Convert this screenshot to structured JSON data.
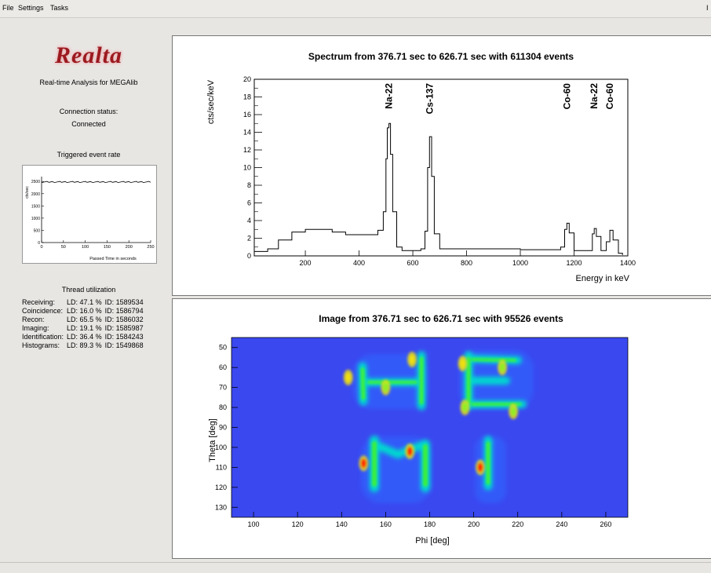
{
  "menu": {
    "file": "File",
    "settings": "Settings",
    "tasks": "Tasks",
    "right_stub": "I"
  },
  "app": {
    "logo": "Realta",
    "subtitle": "Real-time Analysis for MEGAlib"
  },
  "connection": {
    "label": "Connection status:",
    "value": "Connected"
  },
  "rate_plot": {
    "title": "Triggered event rate",
    "ylabel": "cts/sec",
    "xlabel": "Passed Time in seconds",
    "yticks": [
      "0",
      "500",
      "1000",
      "1500",
      "2000",
      "2500"
    ],
    "xticks": [
      "0",
      "50",
      "100",
      "150",
      "200",
      "250"
    ]
  },
  "threads": {
    "title": "Thread utilization",
    "rows": [
      {
        "name": "Receiving:",
        "ld": "LD: 47.1 %",
        "id": "ID: 1589534"
      },
      {
        "name": "Coincidence:",
        "ld": "LD: 16.0 %",
        "id": "ID: 1586794"
      },
      {
        "name": "Recon:",
        "ld": "LD: 65.5 %",
        "id": "ID: 1586032"
      },
      {
        "name": "Imaging:",
        "ld": "LD: 19.1 %",
        "id": "ID: 1585987"
      },
      {
        "name": "Identification:",
        "ld": "LD: 36.4 %",
        "id": "ID: 1584243"
      },
      {
        "name": "Histograms:",
        "ld": "LD: 89.3 %",
        "id": "ID: 1549868"
      }
    ]
  },
  "spectrum": {
    "title": "Spectrum from 376.71 sec to 626.71 sec with 611304 events",
    "ylabel": "cts/sec/keV",
    "xlabel": "Energy in keV",
    "yticks": [
      "0",
      "2",
      "4",
      "6",
      "8",
      "10",
      "12",
      "14",
      "16",
      "18",
      "20"
    ],
    "xticks": [
      "200",
      "400",
      "600",
      "800",
      "1000",
      "1200",
      "1400"
    ],
    "peaks": [
      {
        "label": "Na-22",
        "energy": 511
      },
      {
        "label": "Cs-137",
        "energy": 662
      },
      {
        "label": "Co-60",
        "energy": 1173
      },
      {
        "label": "Na-22",
        "energy": 1275
      },
      {
        "label": "Co-60",
        "energy": 1333
      }
    ]
  },
  "image": {
    "title": "Image from 376.71 sec to 626.71 sec with 95526 events",
    "ylabel": "Theta [deg]",
    "xlabel": "Phi [deg]",
    "yticks": [
      "50",
      "60",
      "70",
      "80",
      "90",
      "100",
      "110",
      "120",
      "130"
    ],
    "xticks": [
      "100",
      "120",
      "140",
      "160",
      "180",
      "200",
      "220",
      "240",
      "260"
    ]
  },
  "colors": {
    "logo_red": "#9b1a1f",
    "heat_bg": "#3347ff",
    "heat_hot": "#ff1a00"
  },
  "chart_data": [
    {
      "type": "line",
      "title": "Triggered event rate",
      "xlabel": "Passed Time in seconds",
      "ylabel": "cts/sec",
      "xlim": [
        0,
        250
      ],
      "ylim": [
        0,
        2700
      ],
      "x": [
        0,
        250
      ],
      "y": [
        2480,
        2480
      ]
    },
    {
      "type": "line",
      "title": "Spectrum from 376.71 sec to 626.71 sec with 611304 events",
      "xlabel": "Energy in keV",
      "ylabel": "cts/sec/keV",
      "xlim": [
        0,
        1400
      ],
      "ylim": [
        0,
        20
      ],
      "x": [
        10,
        60,
        100,
        150,
        200,
        250,
        300,
        350,
        400,
        440,
        470,
        490,
        500,
        505,
        511,
        517,
        525,
        540,
        560,
        600,
        630,
        645,
        655,
        662,
        670,
        680,
        700,
        800,
        900,
        1000,
        1100,
        1150,
        1165,
        1173,
        1182,
        1200,
        1250,
        1268,
        1275,
        1283,
        1300,
        1320,
        1333,
        1345,
        1365,
        1380
      ],
      "y": [
        0.5,
        0.8,
        1.8,
        2.7,
        3.0,
        3.0,
        2.7,
        2.4,
        2.4,
        2.4,
        2.9,
        5.0,
        11.0,
        14.5,
        15.0,
        11.5,
        5.0,
        1.0,
        0.6,
        0.6,
        0.8,
        2.8,
        10.0,
        13.5,
        9.0,
        2.5,
        0.8,
        0.8,
        0.8,
        0.7,
        0.7,
        1.0,
        3.0,
        3.7,
        2.6,
        0.6,
        0.6,
        2.5,
        3.1,
        2.2,
        0.6,
        1.6,
        2.9,
        1.8,
        0.3,
        0.1
      ]
    },
    {
      "type": "heatmap",
      "title": "Image from 376.71 sec to 626.71 sec with 95526 events",
      "xlabel": "Phi [deg]",
      "ylabel": "Theta [deg]",
      "xlim": [
        90,
        270
      ],
      "ylim": [
        45,
        135
      ],
      "hotspots": [
        {
          "phi": 150,
          "theta": 108,
          "level": 1.0
        },
        {
          "phi": 171,
          "theta": 102,
          "level": 0.95
        },
        {
          "phi": 203,
          "theta": 110,
          "level": 0.9
        },
        {
          "phi": 172,
          "theta": 56,
          "level": 0.75
        },
        {
          "phi": 143,
          "theta": 65,
          "level": 0.7
        },
        {
          "phi": 195,
          "theta": 58,
          "level": 0.7
        },
        {
          "phi": 213,
          "theta": 60,
          "level": 0.65
        },
        {
          "phi": 160,
          "theta": 70,
          "level": 0.55
        },
        {
          "phi": 196,
          "theta": 80,
          "level": 0.6
        },
        {
          "phi": 218,
          "theta": 82,
          "level": 0.55
        }
      ]
    }
  ]
}
